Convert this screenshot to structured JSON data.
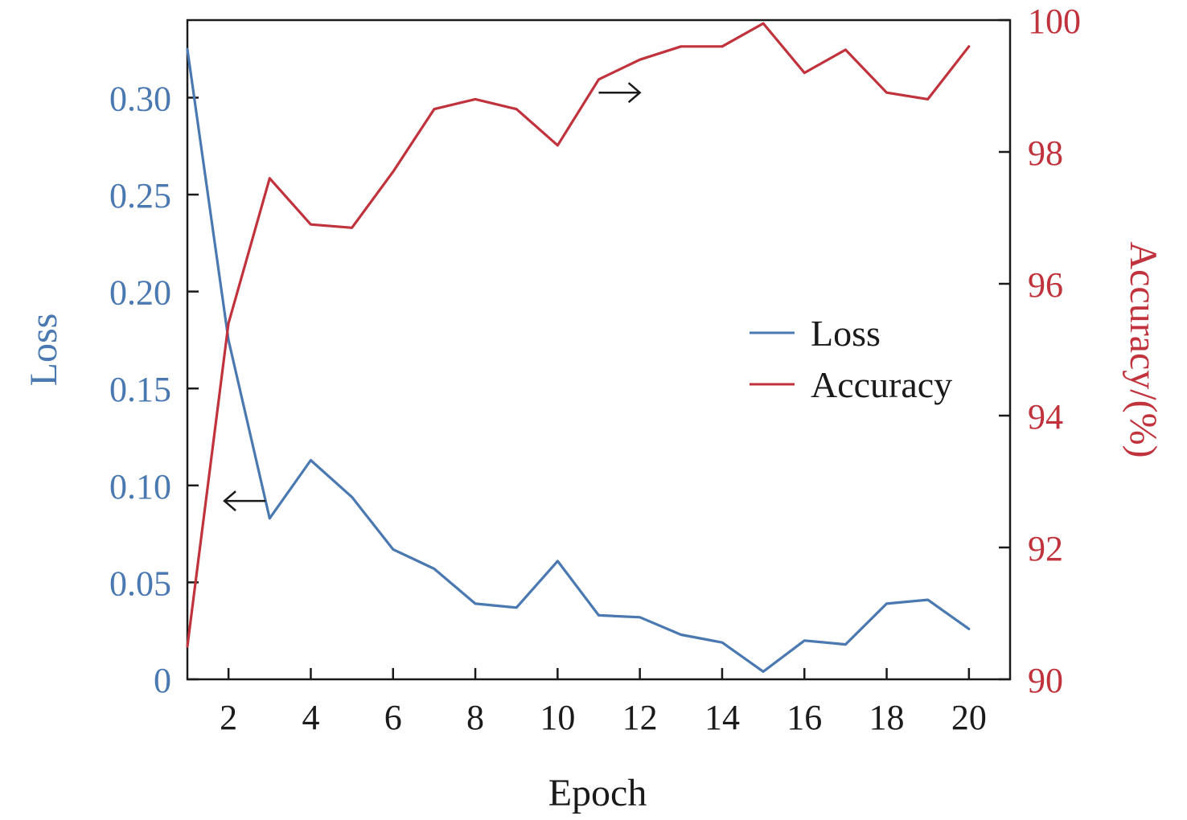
{
  "chart_data": {
    "type": "line",
    "xlabel": "Epoch",
    "y_left_label": "Loss",
    "y_right_label": "Accuracy/(%)",
    "x": [
      1,
      2,
      3,
      4,
      5,
      6,
      7,
      8,
      9,
      10,
      11,
      12,
      13,
      14,
      15,
      16,
      17,
      18,
      19,
      20
    ],
    "xlim": [
      1,
      21
    ],
    "x_ticks": [
      2,
      4,
      6,
      8,
      10,
      12,
      14,
      16,
      18,
      20
    ],
    "x_tick_labels": [
      "2",
      "4",
      "6",
      "8",
      "10",
      "12",
      "14",
      "16",
      "18",
      "20"
    ],
    "y_left_lim": [
      0,
      0.34
    ],
    "y_left_ticks": [
      0,
      0.05,
      0.1,
      0.15,
      0.2,
      0.25,
      0.3
    ],
    "y_left_tick_labels": [
      "0",
      "0.05",
      "0.10",
      "0.15",
      "0.20",
      "0.25",
      "0.30"
    ],
    "y_right_lim": [
      90,
      100
    ],
    "y_right_ticks": [
      90,
      92,
      94,
      96,
      98,
      100
    ],
    "y_right_tick_labels": [
      "90",
      "92",
      "94",
      "96",
      "98",
      "100"
    ],
    "series": [
      {
        "name": "Loss",
        "axis": "left",
        "color": "#4a78b0",
        "values": [
          0.325,
          0.175,
          0.083,
          0.113,
          0.094,
          0.067,
          0.057,
          0.039,
          0.037,
          0.061,
          0.033,
          0.032,
          0.023,
          0.019,
          0.004,
          0.02,
          0.018,
          0.039,
          0.041,
          0.026
        ]
      },
      {
        "name": "Accuracy",
        "axis": "right",
        "color": "#c0323c",
        "values": [
          90.5,
          95.4,
          97.6,
          96.9,
          96.85,
          97.7,
          98.65,
          98.8,
          98.65,
          98.1,
          99.1,
          99.4,
          99.6,
          99.6,
          99.95,
          99.2,
          99.55,
          98.9,
          98.8,
          99.6
        ]
      }
    ],
    "legend_position": "center-right",
    "annotations": [
      {
        "arrow": "left",
        "x_start": 2.9,
        "x_end": 1.9,
        "y_left": 0.092
      },
      {
        "arrow": "right",
        "x_start": 11.0,
        "x_end": 12.0,
        "y_right": 98.9
      }
    ],
    "grid": false
  }
}
